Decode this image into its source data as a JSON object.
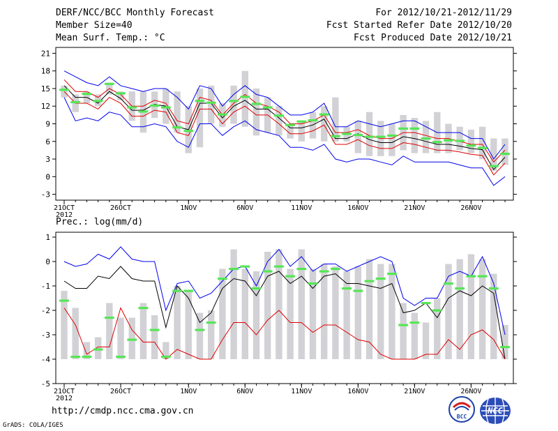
{
  "header": {
    "title": "DERF/NCC/BCC Monthly Forecast",
    "member_size": "Member Size=40",
    "variable": "Mean Surf. Temp.: °C",
    "period": "For 2012/10/21-2012/11/29",
    "started": "Fcst Started Refer Date 2012/10/20",
    "produced": "Fcst Produced Date 2012/10/21"
  },
  "footer": {
    "url": "http://cmdp.ncc.cma.gov.cn",
    "credit": "GrADS: COLA/IGES",
    "logo_left_text": "BCC",
    "logo_right_text": "NCC"
  },
  "colors": {
    "box": "#d2d2d6",
    "median": "#55e655",
    "max_line": "#0000ee",
    "min_line": "#0000ee",
    "upper_line": "#dd0000",
    "lower_line": "#dd0000",
    "mean_line": "#000000"
  },
  "chart_data": [
    {
      "type": "box-line",
      "title": "Mean Surf. Temp.: °C",
      "xlabel": "",
      "ylabel": "",
      "ylim": [
        -4,
        22
      ],
      "yticks": [
        -3,
        0,
        3,
        6,
        9,
        12,
        15,
        18,
        21
      ],
      "xticks": [
        {
          "day": 1,
          "label": "21OCT"
        },
        {
          "day": 6,
          "label": "26OCT"
        },
        {
          "day": 12,
          "label": "1NOV"
        },
        {
          "day": 17,
          "label": "6NOV"
        },
        {
          "day": 22,
          "label": "11NOV"
        },
        {
          "day": 27,
          "label": "16NOV"
        },
        {
          "day": 32,
          "label": "21NOV"
        },
        {
          "day": 37,
          "label": "26NOV"
        }
      ],
      "xsub": "2012",
      "days": 40,
      "box_low": [
        13.5,
        11,
        12.5,
        12,
        14,
        13,
        9.5,
        7.5,
        10,
        9,
        7.5,
        4,
        5,
        9,
        8.5,
        9,
        8.5,
        7,
        7.5,
        7,
        6.5,
        6,
        6.5,
        6,
        6,
        6,
        4,
        3.5,
        3.5,
        3.5,
        4.5,
        4,
        4,
        4,
        4,
        4.5,
        4,
        3,
        1,
        2
      ],
      "box_high": [
        15.5,
        14,
        14.5,
        14,
        16,
        14.5,
        14.5,
        14.5,
        14.5,
        15,
        14.5,
        12,
        15,
        15.5,
        12.5,
        15.5,
        18,
        15,
        13.5,
        12,
        9,
        9.5,
        11,
        12,
        13.5,
        8.5,
        9.5,
        11,
        9.5,
        9,
        10.5,
        10,
        9.5,
        11,
        9,
        8.5,
        8,
        8.5,
        6.5,
        6.5
      ],
      "median": [
        14.8,
        12.7,
        14.1,
        12.9,
        15.8,
        14.2,
        11.8,
        11.1,
        12.1,
        11.8,
        8.4,
        7.8,
        12.9,
        12.6,
        10.6,
        12.9,
        13.6,
        12.4,
        11.8,
        10.4,
        8.8,
        9.4,
        9.6,
        10.6,
        6.9,
        7.3,
        7.1,
        6.8,
        6.8,
        7.0,
        8.2,
        8.2,
        6.5,
        5.9,
        6.2,
        6.1,
        5.3,
        4.9,
        1.8,
        3.9
      ],
      "series": [
        {
          "name": "max",
          "color": "#0000ee",
          "values": [
            18,
            17,
            16,
            15.5,
            17,
            15.5,
            15,
            14.5,
            15,
            15,
            13.5,
            11.5,
            15.5,
            15,
            12,
            14,
            15.5,
            14,
            13.5,
            12,
            10.5,
            10.5,
            11,
            12.5,
            8.5,
            8.5,
            9.5,
            9,
            8.5,
            9,
            9.5,
            9.5,
            8.5,
            7.5,
            7.5,
            7.5,
            6.5,
            6.5,
            3,
            5.5
          ]
        },
        {
          "name": "upper",
          "color": "#dd0000",
          "values": [
            16.5,
            14.5,
            14.5,
            13.5,
            15,
            14,
            12,
            12,
            13,
            12.5,
            9.5,
            9,
            13.5,
            13,
            10.5,
            12.5,
            14,
            12.5,
            12,
            11,
            9,
            9,
            9.5,
            10.5,
            7.5,
            7.5,
            8,
            7,
            6.5,
            6.5,
            7.5,
            7.5,
            7,
            6.5,
            6.5,
            6,
            5.5,
            5.5,
            2.5,
            4.5
          ]
        },
        {
          "name": "mean",
          "color": "#000000",
          "values": [
            15.5,
            13.5,
            13.5,
            12.5,
            14.5,
            13.3,
            11.3,
            11.3,
            12.3,
            12,
            8.5,
            8,
            12.5,
            12.5,
            10,
            12,
            13,
            11.5,
            11.5,
            10,
            8.3,
            8.3,
            8.8,
            9.8,
            6.5,
            6.5,
            7.3,
            6.3,
            5.8,
            5.8,
            6.8,
            6.5,
            6,
            5.5,
            5.5,
            5.2,
            4.8,
            4.6,
            1.2,
            3.3
          ]
        },
        {
          "name": "lower",
          "color": "#dd0000",
          "values": [
            14.5,
            12.5,
            12.5,
            11.5,
            13.5,
            12.5,
            10.3,
            10.3,
            11.3,
            11,
            7.5,
            7,
            11.5,
            11.5,
            9,
            11,
            12,
            10.5,
            10.5,
            9,
            7.3,
            7.3,
            7.8,
            8.8,
            5.5,
            5.5,
            6.3,
            5.3,
            4.8,
            4.8,
            5.8,
            5.5,
            5,
            4.5,
            4.5,
            4.2,
            3.8,
            3.6,
            0.3,
            2.3
          ]
        },
        {
          "name": "min",
          "color": "#0000ee",
          "values": [
            13.5,
            9.5,
            10,
            9.5,
            11,
            10.5,
            8.5,
            8.5,
            9,
            8.5,
            6,
            5,
            9,
            9,
            7,
            8.5,
            9.5,
            8,
            7.5,
            7,
            5,
            5,
            4.5,
            5.5,
            3,
            2.5,
            3,
            3,
            2.5,
            2,
            3.5,
            2.5,
            2.5,
            2.5,
            2.5,
            2,
            1.5,
            1.5,
            -1.5,
            0
          ]
        }
      ]
    },
    {
      "type": "box-line",
      "title": "Prec.: log(mm/d)",
      "xlabel": "",
      "ylabel": "",
      "ylim": [
        -5,
        1.2
      ],
      "yticks": [
        -5,
        -4,
        -3,
        -2,
        -1,
        0,
        1
      ],
      "xticks": [
        {
          "day": 1,
          "label": "21OCT"
        },
        {
          "day": 6,
          "label": "26OCT"
        },
        {
          "day": 12,
          "label": "1NOV"
        },
        {
          "day": 17,
          "label": "6NOV"
        },
        {
          "day": 22,
          "label": "11NOV"
        },
        {
          "day": 27,
          "label": "16NOV"
        },
        {
          "day": 32,
          "label": "21NOV"
        },
        {
          "day": 37,
          "label": "26NOV"
        }
      ],
      "xsub": "2012",
      "days": 40,
      "box_low": [
        -4,
        -4,
        -4,
        -4,
        -4,
        -4,
        -4,
        -4,
        -4,
        -4,
        -4,
        -4,
        -4,
        -4,
        -4,
        -4,
        -4,
        -4,
        -4,
        -4,
        -4,
        -4,
        -4,
        -4,
        -4,
        -4,
        -4,
        -4,
        -4,
        -4,
        -4,
        -4,
        -4,
        -4,
        -4,
        -4,
        -4,
        -4,
        -4,
        -4
      ],
      "box_high": [
        -1.2,
        -1.9,
        -3.3,
        -3.1,
        -1.7,
        -2.3,
        -2.3,
        -1.7,
        -2.2,
        -3.3,
        -1.0,
        -1.2,
        -2.1,
        -2.0,
        -0.3,
        0.5,
        -0.3,
        -0.4,
        0.4,
        0.5,
        -0.3,
        0.5,
        -0.3,
        -0.1,
        -0.2,
        -0.4,
        -0.2,
        0.1,
        -0.1,
        -0.1,
        -1.7,
        -2.1,
        -2.5,
        -1.5,
        -0.1,
        0.1,
        0.3,
        0.1,
        -0.5,
        -2.6
      ],
      "median": [
        -1.6,
        -3.9,
        -3.9,
        -3.6,
        -2.3,
        -3.9,
        -3.2,
        -1.9,
        -2.8,
        -3.9,
        -1.2,
        -1.2,
        -2.8,
        -2.5,
        -0.7,
        -0.3,
        -0.2,
        -1.1,
        -0.4,
        -0.2,
        -0.6,
        -0.3,
        -0.9,
        -0.4,
        -0.3,
        -1.1,
        -1.2,
        -0.8,
        -0.7,
        -0.5,
        -2.6,
        -2.5,
        -1.7,
        -2.0,
        -0.9,
        -1.1,
        -0.6,
        -0.6,
        -1.1,
        -3.5
      ],
      "series": [
        {
          "name": "max",
          "color": "#0000ee",
          "values": [
            0,
            -0.2,
            -0.1,
            0.3,
            0.1,
            0.6,
            0.1,
            0,
            0,
            -2.0,
            -0.9,
            -0.8,
            -1.5,
            -1.3,
            -0.8,
            -0.3,
            -0.2,
            -1.0,
            0,
            0.5,
            -0.2,
            0.2,
            -0.4,
            -0.1,
            -0.1,
            -0.4,
            -0.2,
            0,
            0.2,
            0,
            -1.5,
            -1.8,
            -1.5,
            -1.5,
            -0.6,
            -0.4,
            -0.6,
            0.2,
            -0.9,
            -3.0
          ]
        },
        {
          "name": "mean",
          "color": "#000000",
          "values": [
            -0.8,
            -1.1,
            -1.1,
            -0.6,
            -0.7,
            -0.2,
            -0.7,
            -0.8,
            -0.8,
            -2.7,
            -1.0,
            -1.5,
            -2.5,
            -2.1,
            -1.1,
            -0.7,
            -0.8,
            -1.4,
            -0.6,
            -0.4,
            -0.9,
            -0.6,
            -1.1,
            -0.6,
            -0.5,
            -0.9,
            -0.9,
            -1.0,
            -1.1,
            -0.9,
            -2.1,
            -2.0,
            -1.7,
            -2.3,
            -1.5,
            -1.2,
            -1.4,
            -1.0,
            -1.3,
            -4.0
          ]
        },
        {
          "name": "min",
          "color": "#dd0000",
          "values": [
            -1.9,
            -2.6,
            -3.8,
            -3.5,
            -3.5,
            -1.9,
            -2.8,
            -3.3,
            -3.3,
            -4,
            -3.6,
            -3.8,
            -4,
            -4,
            -3.2,
            -2.5,
            -2.5,
            -3.0,
            -2.4,
            -2.0,
            -2.5,
            -2.5,
            -2.9,
            -2.6,
            -2.6,
            -2.9,
            -3.2,
            -3.3,
            -3.8,
            -4,
            -4,
            -4,
            -3.8,
            -3.8,
            -3.2,
            -3.6,
            -3.0,
            -2.8,
            -3.2,
            -4
          ]
        }
      ]
    }
  ]
}
